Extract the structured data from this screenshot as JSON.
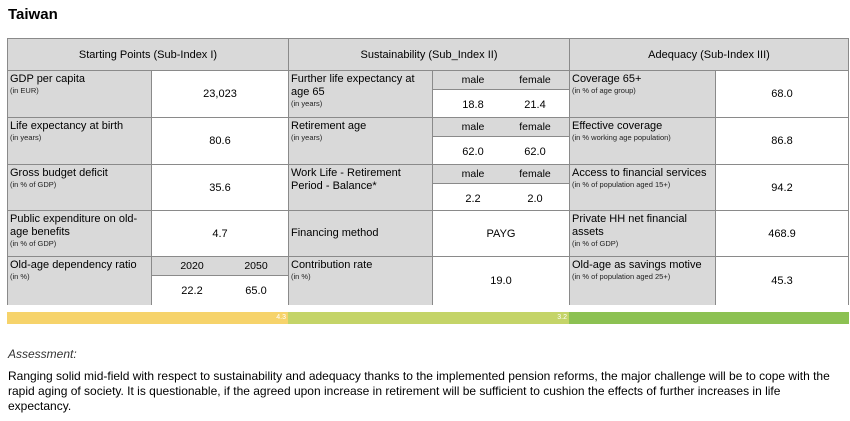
{
  "country": "Taiwan",
  "headers": {
    "sub1": "Starting Points (Sub-Index I)",
    "sub2": "Sustainability (Sub_Index II)",
    "sub3": "Adequacy (Sub-Index III)"
  },
  "col1": {
    "gdp": {
      "label": "GDP per capita",
      "unit": "(in EUR)",
      "value": "23,023"
    },
    "life": {
      "label": "Life expectancy at birth",
      "unit": "(in years)",
      "value": "80.6"
    },
    "deficit": {
      "label": "Gross budget deficit",
      "unit": "(in % of GDP)",
      "value": "35.6"
    },
    "publicexp": {
      "label": "Public expenditure on old-age benefits",
      "unit": "(in % of GDP)",
      "value": "4.7"
    },
    "dependency": {
      "label": "Old-age dependency ratio",
      "unit": "(in %)",
      "h1": "2020",
      "h2": "2050",
      "v1": "22.2",
      "v2": "65.0"
    }
  },
  "col2": {
    "further": {
      "label": "Further life expectancy at age 65",
      "unit": "(in years)",
      "h1": "male",
      "h2": "female",
      "v1": "18.8",
      "v2": "21.4"
    },
    "retirement": {
      "label": "Retirement age",
      "unit": "(in years)",
      "h1": "male",
      "h2": "female",
      "v1": "62.0",
      "v2": "62.0"
    },
    "worklife": {
      "label": "Work Life - Retirement Period - Balance*",
      "unit": "",
      "h1": "male",
      "h2": "female",
      "v1": "2.2",
      "v2": "2.0"
    },
    "financing": {
      "label": "Financing method",
      "unit": "",
      "value": "PAYG"
    },
    "contribution": {
      "label": "Contribution rate",
      "unit": "(in %)",
      "value": "19.0"
    }
  },
  "col3": {
    "coverage": {
      "label": "Coverage 65+",
      "unit": "(in % of age group)",
      "value": "68.0"
    },
    "effective": {
      "label": "Effective coverage",
      "unit": "(in % working age population)",
      "value": "86.8"
    },
    "financial": {
      "label": "Access to financial services",
      "unit": "(in % of population aged 15+)",
      "value": "94.2"
    },
    "private": {
      "label": "Private HH net financial assets",
      "unit": "(in % of GDP)",
      "value": "468.9"
    },
    "savings": {
      "label": "Old-age as savings motive",
      "unit": "(in % of population aged 25+)",
      "value": "45.3"
    }
  },
  "scores": {
    "sub1": {
      "value": "4.3",
      "color": "#f6d36b"
    },
    "sub2": {
      "value": "3.2",
      "color": "#c4d468"
    },
    "sub3": {
      "value": "",
      "color": "#8cc152"
    }
  },
  "assessment": {
    "title": "Assessment:",
    "text": "Ranging solid mid-field with respect to sustainability and adequacy thanks to the implemented pension reforms, the major challenge will be to cope with the rapid aging of society. It is questionable, if the agreed upon increase in retirement will be sufficient to cushion the effects of further increases in life expectancy."
  }
}
